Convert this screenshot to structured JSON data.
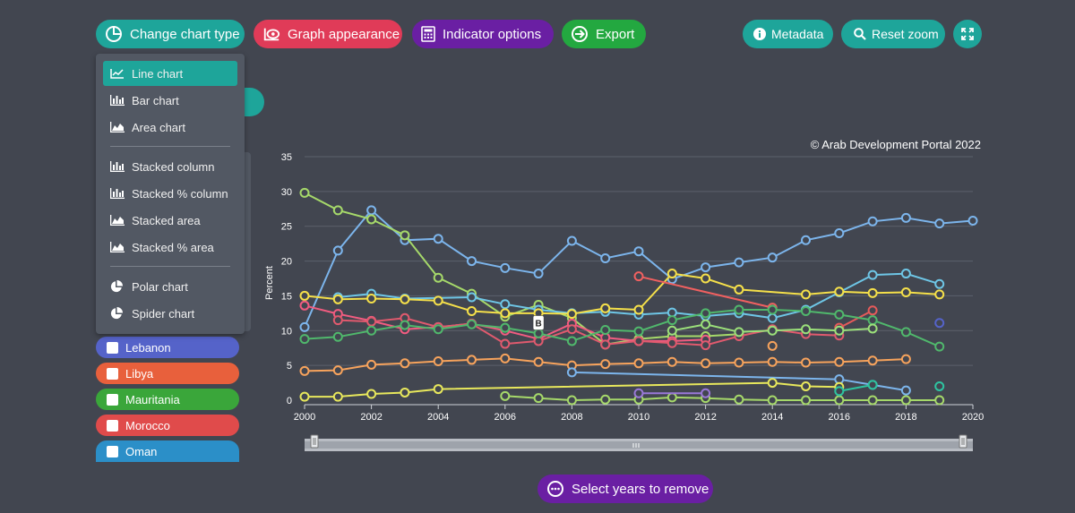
{
  "toolbar": {
    "change_chart_type": "Change chart type",
    "graph_appearance": "Graph appearance",
    "indicator_options": "Indicator options",
    "export": "Export",
    "metadata": "Metadata",
    "reset_zoom": "Reset zoom"
  },
  "chart_types": {
    "line": "Line chart",
    "bar": "Bar chart",
    "area": "Area chart",
    "stacked_column": "Stacked column",
    "stacked_pct_column": "Stacked % column",
    "stacked_area": "Stacked area",
    "stacked_pct_area": "Stacked % area",
    "polar": "Polar chart",
    "spider": "Spider chart"
  },
  "countries": [
    {
      "label": "Lebanon",
      "color": "#5563c9"
    },
    {
      "label": "Libya",
      "color": "#e8603c"
    },
    {
      "label": "Mauritania",
      "color": "#3aa63a"
    },
    {
      "label": "Morocco",
      "color": "#e04b4b"
    },
    {
      "label": "Oman",
      "color": "#2b8fc8"
    }
  ],
  "copyright": "© Arab Development Portal 2022",
  "select_years": "Select years to remove",
  "chart_data": {
    "type": "line",
    "ylabel": "Percent",
    "xlim": [
      2000,
      2020
    ],
    "ylim": [
      0,
      35
    ],
    "x_ticks": [
      2000,
      2002,
      2004,
      2006,
      2008,
      2010,
      2012,
      2014,
      2016,
      2018,
      2020
    ],
    "y_ticks": [
      0,
      5,
      10,
      15,
      20,
      25,
      30,
      35
    ],
    "tooltip_label": "B",
    "tooltip_x": 2007,
    "tooltip_y": 11,
    "series": [
      {
        "color": "#7cb5ec",
        "points": [
          [
            2000,
            10.5
          ],
          [
            2001,
            21.5
          ],
          [
            2002,
            27.3
          ],
          [
            2003,
            23
          ],
          [
            2004,
            23.2
          ],
          [
            2005,
            20
          ],
          [
            2006,
            19
          ],
          [
            2007,
            18.2
          ],
          [
            2008,
            22.9
          ],
          [
            2009,
            20.4
          ],
          [
            2010,
            21.4
          ],
          [
            2011,
            17.4
          ],
          [
            2012,
            19.1
          ],
          [
            2013,
            19.8
          ],
          [
            2014,
            20.5
          ],
          [
            2015,
            23
          ],
          [
            2016,
            24
          ],
          [
            2017,
            25.7
          ],
          [
            2018,
            26.2
          ],
          [
            2019,
            25.4
          ],
          [
            2020,
            25.8
          ]
        ]
      },
      {
        "color": "#a6d96a",
        "points": [
          [
            2000,
            29.8
          ],
          [
            2001,
            27.3
          ],
          [
            2002,
            26
          ],
          [
            2003,
            23.7
          ],
          [
            2004,
            17.6
          ],
          [
            2005,
            15.3
          ],
          [
            2006,
            12
          ],
          [
            2007,
            13.7
          ],
          [
            2008,
            11.8
          ],
          [
            2009,
            8
          ],
          [
            2010,
            8.8
          ],
          [
            2011,
            9.2
          ],
          [
            2012,
            9.2
          ],
          [
            2013,
            9.5
          ]
        ]
      },
      {
        "color": "#6ec6e6",
        "points": [
          [
            2001,
            14.8
          ],
          [
            2002,
            15.3
          ],
          [
            2003,
            14.6
          ],
          [
            2005,
            14.8
          ],
          [
            2006,
            13.8
          ],
          [
            2007,
            13
          ],
          [
            2008,
            12.5
          ],
          [
            2009,
            12.7
          ],
          [
            2010,
            12.3
          ],
          [
            2011,
            12.6
          ],
          [
            2012,
            12.1
          ],
          [
            2013,
            12.5
          ],
          [
            2014,
            11.8
          ],
          [
            2015,
            13
          ],
          [
            2016,
            15.5
          ],
          [
            2017,
            18
          ],
          [
            2018,
            18.2
          ],
          [
            2019,
            16.7
          ]
        ]
      },
      {
        "color": "#f5e04a",
        "points": [
          [
            2000,
            15
          ],
          [
            2001,
            14.5
          ],
          [
            2002,
            14.6
          ],
          [
            2003,
            14.5
          ],
          [
            2004,
            14.3
          ],
          [
            2005,
            12.8
          ],
          [
            2006,
            12.5
          ],
          [
            2007,
            12.5
          ],
          [
            2008,
            12.4
          ],
          [
            2009,
            13.2
          ],
          [
            2010,
            13
          ],
          [
            2011,
            18.2
          ],
          [
            2012,
            17.5
          ],
          [
            2013,
            15.9
          ],
          [
            2015,
            15.2
          ],
          [
            2016,
            15.6
          ],
          [
            2017,
            15.4
          ],
          [
            2018,
            15.5
          ],
          [
            2019,
            15.2
          ]
        ]
      },
      {
        "color": "#f15c80",
        "points": [
          [
            2000,
            13.6
          ],
          [
            2001,
            12.4
          ],
          [
            2002,
            11.4
          ],
          [
            2003,
            10.2
          ],
          [
            2004,
            10.5
          ],
          [
            2005,
            11
          ],
          [
            2006,
            10
          ],
          [
            2007,
            8.8
          ],
          [
            2008,
            11
          ],
          [
            2009,
            9
          ],
          [
            2010,
            8.5
          ],
          [
            2011,
            8.5
          ],
          [
            2012,
            8.7
          ]
        ]
      },
      {
        "color": "#e05a6e",
        "points": [
          [
            2001,
            11.5
          ],
          [
            2002,
            11.3
          ],
          [
            2003,
            11.8
          ],
          [
            2004,
            10.5
          ],
          [
            2005,
            11
          ],
          [
            2006,
            8.1
          ],
          [
            2007,
            8.5
          ],
          [
            2008,
            10.2
          ],
          [
            2009,
            8
          ],
          [
            2010,
            8.5
          ],
          [
            2011,
            8.2
          ],
          [
            2012,
            7.9
          ],
          [
            2013,
            9.2
          ],
          [
            2014,
            10.2
          ],
          [
            2015,
            9.5
          ],
          [
            2016,
            9.3
          ]
        ]
      },
      {
        "color": "#f06060",
        "points": [
          [
            2010,
            17.8
          ],
          [
            2014,
            13.3
          ]
        ]
      },
      {
        "color": "#e65a5a",
        "points": [
          [
            2016,
            10.4
          ],
          [
            2017,
            12.9
          ]
        ]
      },
      {
        "color": "#f7a35c",
        "points": [
          [
            2000,
            4.2
          ],
          [
            2001,
            4.3
          ],
          [
            2002,
            5.1
          ],
          [
            2003,
            5.3
          ],
          [
            2004,
            5.6
          ],
          [
            2005,
            5.8
          ],
          [
            2006,
            6
          ],
          [
            2007,
            5.5
          ],
          [
            2008,
            5
          ],
          [
            2009,
            5.2
          ],
          [
            2010,
            5.3
          ],
          [
            2011,
            5.5
          ],
          [
            2012,
            5.3
          ],
          [
            2013,
            5.4
          ],
          [
            2014,
            5.5
          ],
          [
            2015,
            5.4
          ],
          [
            2016,
            5.5
          ],
          [
            2017,
            5.7
          ],
          [
            2018,
            5.9
          ]
        ]
      },
      {
        "color": "#50b86c",
        "points": [
          [
            2000,
            8.8
          ],
          [
            2001,
            9.1
          ],
          [
            2002,
            10
          ],
          [
            2003,
            10.8
          ],
          [
            2004,
            10.2
          ],
          [
            2005,
            10.9
          ],
          [
            2006,
            10.4
          ],
          [
            2007,
            9.6
          ],
          [
            2008,
            8.5
          ],
          [
            2009,
            10.1
          ],
          [
            2010,
            9.9
          ],
          [
            2011,
            11.5
          ],
          [
            2012,
            12.5
          ],
          [
            2013,
            13
          ],
          [
            2014,
            13
          ],
          [
            2015,
            12.8
          ],
          [
            2016,
            12.3
          ],
          [
            2017,
            11.5
          ],
          [
            2018,
            9.8
          ],
          [
            2019,
            7.7
          ]
        ]
      },
      {
        "color": "#9be07a",
        "points": [
          [
            2011,
            10
          ],
          [
            2012,
            10.9
          ],
          [
            2013,
            9.8
          ],
          [
            2014,
            10
          ],
          [
            2015,
            10.2
          ],
          [
            2016,
            10
          ],
          [
            2017,
            10.3
          ]
        ]
      },
      {
        "color": "#7cb5ec",
        "points": [
          [
            2008,
            4
          ],
          [
            2016,
            3
          ],
          [
            2017,
            2.2
          ],
          [
            2018,
            1.4
          ]
        ]
      },
      {
        "color": "#e8e85c",
        "points": [
          [
            2000,
            0.5
          ],
          [
            2001,
            0.5
          ],
          [
            2002,
            0.9
          ],
          [
            2003,
            1.1
          ],
          [
            2004,
            1.6
          ],
          [
            2014,
            2.5
          ],
          [
            2015,
            2
          ],
          [
            2016,
            1.9
          ]
        ]
      },
      {
        "color": "#a6d96a",
        "points": [
          [
            2006,
            0.6
          ],
          [
            2007,
            0.3
          ],
          [
            2008,
            0
          ],
          [
            2009,
            0.1
          ],
          [
            2010,
            0.1
          ],
          [
            2011,
            0.4
          ],
          [
            2012,
            0.3
          ],
          [
            2013,
            0.1
          ],
          [
            2014,
            0
          ],
          [
            2015,
            0
          ],
          [
            2016,
            0
          ],
          [
            2017,
            0
          ],
          [
            2018,
            0
          ],
          [
            2019,
            0
          ]
        ]
      },
      {
        "color": "#9a78d8",
        "points": [
          [
            2010,
            1
          ],
          [
            2012,
            1
          ]
        ]
      },
      {
        "color": "#2ec4a0",
        "points": [
          [
            2016,
            1.3
          ],
          [
            2017,
            2.2
          ]
        ]
      },
      {
        "color": "#2ec4a0",
        "points": [
          [
            2019,
            2
          ]
        ]
      },
      {
        "color": "#5563c9",
        "points": [
          [
            2019,
            11.1
          ]
        ]
      },
      {
        "color": "#f7a35c",
        "points": [
          [
            2014,
            7.8
          ]
        ]
      }
    ]
  }
}
